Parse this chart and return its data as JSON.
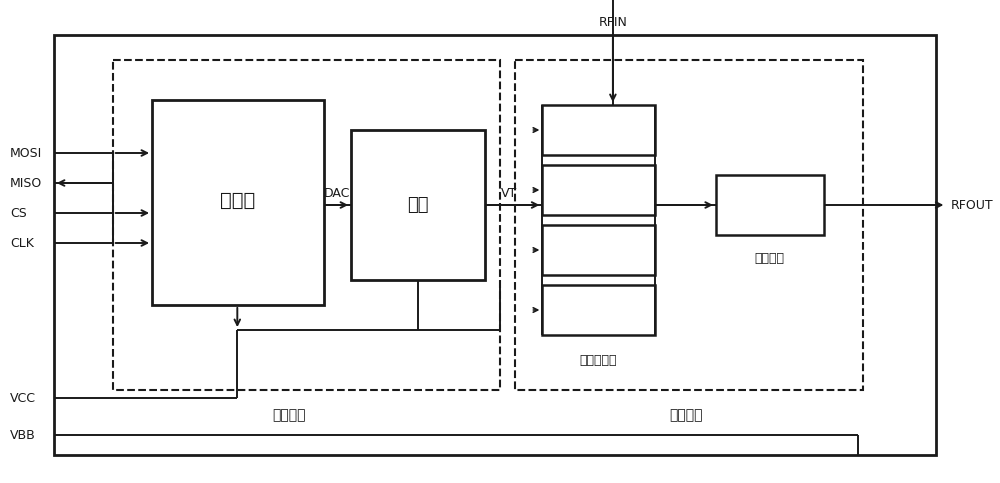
{
  "fig_width": 10.0,
  "fig_height": 4.83,
  "bg_color": "#ffffff",
  "line_color": "#1a1a1a",
  "labels": {
    "mcu": "单片机",
    "opamp": "运放",
    "varactor": "变容二极管",
    "inductor": "绕线电感",
    "control_circuit": "数控电路",
    "filter_circuit": "滤波电路"
  }
}
